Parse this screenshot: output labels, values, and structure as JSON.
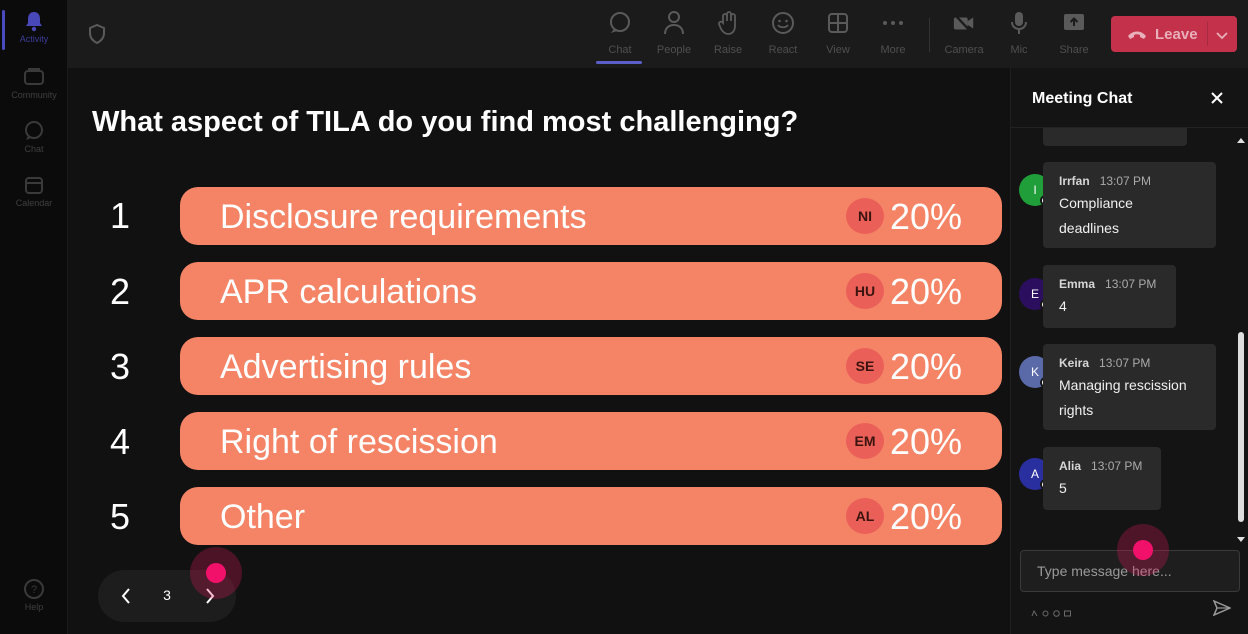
{
  "rail": {
    "items": [
      {
        "label": "Activity",
        "icon": "bell-icon",
        "active": true
      },
      {
        "label": "Community",
        "icon": "community-icon",
        "active": false
      },
      {
        "label": "Chat",
        "icon": "chat-icon",
        "active": false
      },
      {
        "label": "Calendar",
        "icon": "calendar-icon",
        "active": false
      }
    ],
    "help_label": "Help"
  },
  "toolbar": {
    "buttons": [
      {
        "label": "Chat",
        "icon": "chat-icon",
        "active": true
      },
      {
        "label": "People",
        "icon": "people-icon"
      },
      {
        "label": "Raise",
        "icon": "raise-hand-icon"
      },
      {
        "label": "React",
        "icon": "react-icon"
      },
      {
        "label": "View",
        "icon": "view-icon"
      },
      {
        "label": "More",
        "icon": "more-icon"
      },
      {
        "label": "Camera",
        "icon": "camera-off-icon"
      },
      {
        "label": "Mic",
        "icon": "mic-icon"
      },
      {
        "label": "Share",
        "icon": "share-icon"
      }
    ],
    "leave_label": "Leave"
  },
  "poll": {
    "question": "What aspect of TILA do you find most challenging?",
    "options": [
      {
        "number": "1",
        "label": "Disclosure requirements",
        "avatar": "NI",
        "percent": "20%"
      },
      {
        "number": "2",
        "label": "APR calculations",
        "avatar": "HU",
        "percent": "20%"
      },
      {
        "number": "3",
        "label": "Advertising rules",
        "avatar": "SE",
        "percent": "20%"
      },
      {
        "number": "4",
        "label": "Right of rescission",
        "avatar": "EM",
        "percent": "20%"
      },
      {
        "number": "5",
        "label": "Other",
        "avatar": "AL",
        "percent": "20%"
      }
    ],
    "pager": {
      "current_page": "3"
    }
  },
  "chat": {
    "title": "Meeting Chat",
    "messages": [
      {
        "initial": "I",
        "author": "Irrfan",
        "time": "13:07 PM",
        "text": [
          "Compliance",
          "deadlines"
        ],
        "avatar_color": "#1f9e3a"
      },
      {
        "initial": "E",
        "author": "Emma",
        "time": "13:07 PM",
        "text": [
          "4"
        ],
        "avatar_color": "#2b0f5e"
      },
      {
        "initial": "K",
        "author": "Keira",
        "time": "13:07 PM",
        "text": [
          "Managing rescission",
          "rights"
        ],
        "avatar_color": "#5a6aa8"
      },
      {
        "initial": "A",
        "author": "Alia",
        "time": "13:07 PM",
        "text": [
          "5"
        ],
        "avatar_color": "#2a2fa0"
      }
    ],
    "input_placeholder": "Type message here..."
  },
  "colors": {
    "option_bar": "#f58466",
    "option_avatar": "#ea5f58",
    "leave": "#c4314b",
    "accent": "#5b5fc7",
    "pointer": "#f2116a"
  }
}
